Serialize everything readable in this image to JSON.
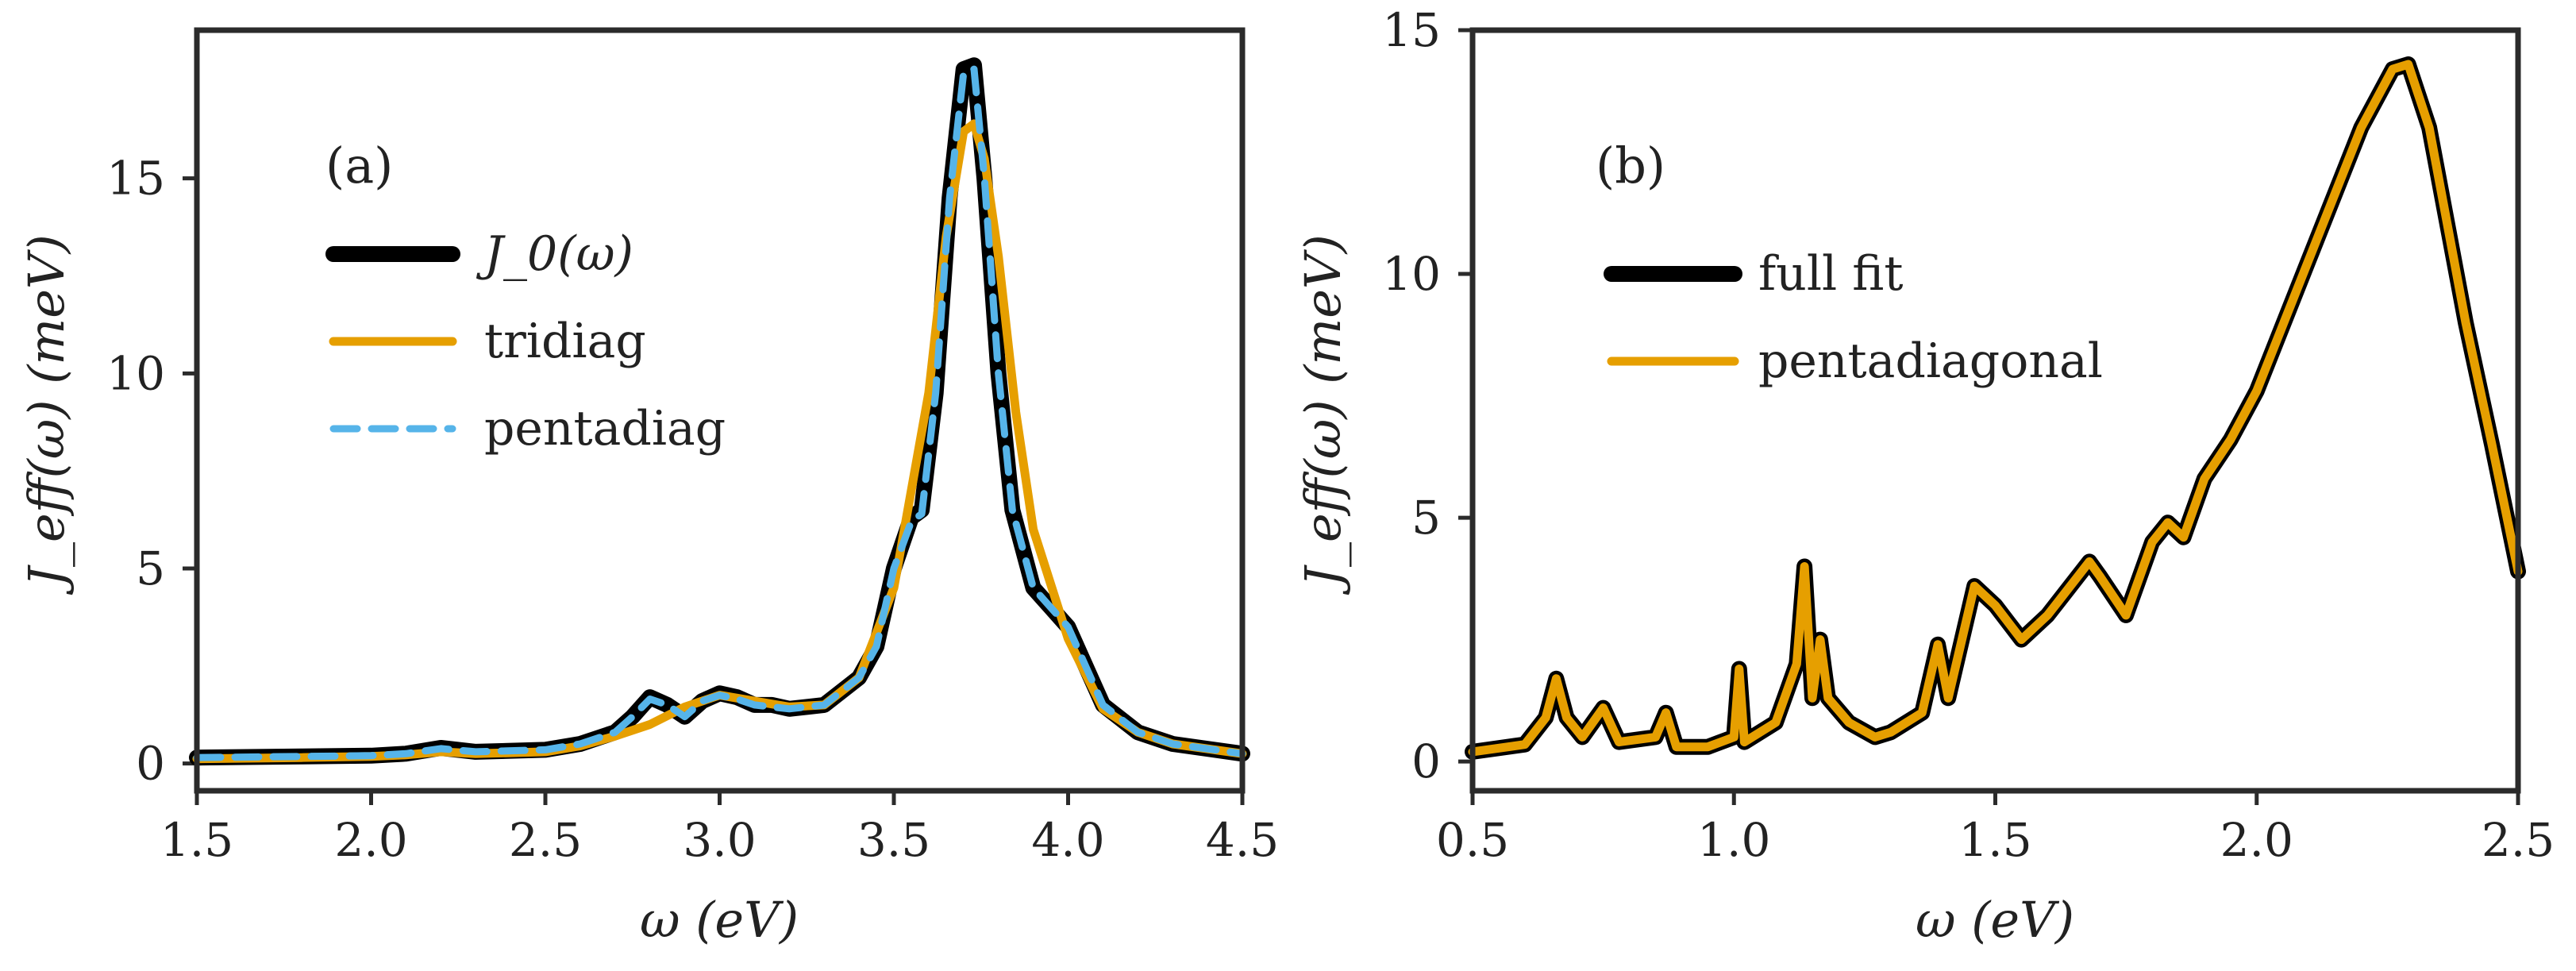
{
  "colors": {
    "black": "#000000",
    "orange": "#E69F00",
    "blue": "#56B4E9",
    "frame": "#2b2b2b"
  },
  "chart_data": [
    {
      "type": "line",
      "panel": "(a)",
      "xlabel": "ω (eV)",
      "ylabel": "J_eff(ω) (meV)",
      "xlim": [
        1.5,
        4.5
      ],
      "ylim": [
        -0.7,
        18.8
      ],
      "xticks": [
        "1.5",
        "2.0",
        "2.5",
        "3.0",
        "3.5",
        "4.0",
        "4.5"
      ],
      "yticks": [
        "0",
        "5",
        "10",
        "15"
      ],
      "legend_position": "upper-left",
      "series": [
        {
          "name": "J_0(ω)",
          "style": "solid-thick",
          "color": "#000000",
          "x": [
            1.5,
            1.8,
            2.0,
            2.1,
            2.2,
            2.3,
            2.5,
            2.6,
            2.7,
            2.75,
            2.8,
            2.85,
            2.9,
            2.95,
            3.0,
            3.05,
            3.1,
            3.15,
            3.2,
            3.3,
            3.4,
            3.45,
            3.5,
            3.55,
            3.58,
            3.62,
            3.66,
            3.7,
            3.73,
            3.76,
            3.8,
            3.84,
            3.9,
            3.95,
            4.0,
            4.1,
            4.2,
            4.3,
            4.5
          ],
          "y": [
            0.15,
            0.18,
            0.2,
            0.25,
            0.4,
            0.3,
            0.35,
            0.5,
            0.8,
            1.2,
            1.7,
            1.5,
            1.2,
            1.6,
            1.8,
            1.7,
            1.5,
            1.5,
            1.4,
            1.5,
            2.2,
            3.0,
            5.0,
            6.3,
            6.5,
            9.5,
            14.5,
            17.8,
            17.9,
            15.0,
            10.0,
            6.5,
            4.5,
            4.0,
            3.5,
            1.5,
            0.8,
            0.5,
            0.25
          ]
        },
        {
          "name": "tridiag",
          "style": "solid",
          "color": "#E69F00",
          "x": [
            1.5,
            1.8,
            2.0,
            2.1,
            2.2,
            2.3,
            2.5,
            2.6,
            2.7,
            2.8,
            2.9,
            3.0,
            3.1,
            3.2,
            3.3,
            3.4,
            3.5,
            3.6,
            3.65,
            3.7,
            3.73,
            3.76,
            3.8,
            3.85,
            3.9,
            4.0,
            4.1,
            4.2,
            4.3,
            4.5
          ],
          "y": [
            0.12,
            0.15,
            0.18,
            0.22,
            0.3,
            0.25,
            0.3,
            0.45,
            0.7,
            1.0,
            1.45,
            1.75,
            1.6,
            1.45,
            1.5,
            2.2,
            4.5,
            9.5,
            13.5,
            16.2,
            16.4,
            15.5,
            13.0,
            9.0,
            6.0,
            3.2,
            1.4,
            0.8,
            0.5,
            0.25
          ]
        },
        {
          "name": "pentadiag",
          "style": "dashed",
          "color": "#56B4E9",
          "x": [
            1.5,
            1.8,
            2.0,
            2.1,
            2.2,
            2.3,
            2.5,
            2.6,
            2.7,
            2.75,
            2.8,
            2.85,
            2.9,
            2.95,
            3.0,
            3.05,
            3.1,
            3.15,
            3.2,
            3.3,
            3.4,
            3.45,
            3.5,
            3.55,
            3.58,
            3.62,
            3.66,
            3.7,
            3.73,
            3.76,
            3.8,
            3.84,
            3.9,
            3.95,
            4.0,
            4.1,
            4.2,
            4.3,
            4.5
          ],
          "y": [
            0.15,
            0.18,
            0.2,
            0.25,
            0.38,
            0.3,
            0.35,
            0.5,
            0.8,
            1.2,
            1.65,
            1.5,
            1.2,
            1.6,
            1.75,
            1.65,
            1.5,
            1.45,
            1.4,
            1.5,
            2.2,
            3.0,
            5.0,
            6.2,
            6.4,
            9.5,
            14.5,
            17.7,
            17.8,
            15.0,
            10.0,
            6.5,
            4.5,
            4.0,
            3.5,
            1.5,
            0.8,
            0.5,
            0.25
          ]
        }
      ]
    },
    {
      "type": "line",
      "panel": "(b)",
      "xlabel": "ω (eV)",
      "ylabel": "J_eff(ω) (meV)",
      "xlim": [
        0.5,
        2.5
      ],
      "ylim": [
        -0.6,
        15.0
      ],
      "xticks": [
        "0.5",
        "1.0",
        "1.5",
        "2.0",
        "2.5"
      ],
      "yticks": [
        "0",
        "5",
        "10",
        "15"
      ],
      "legend_position": "upper-left",
      "series": [
        {
          "name": "full fit",
          "style": "solid-thick",
          "color": "#000000",
          "x": [
            0.5,
            0.6,
            0.64,
            0.66,
            0.68,
            0.71,
            0.75,
            0.78,
            0.85,
            0.87,
            0.89,
            0.95,
            1.0,
            1.01,
            1.02,
            1.08,
            1.12,
            1.135,
            1.15,
            1.165,
            1.18,
            1.22,
            1.27,
            1.3,
            1.36,
            1.39,
            1.41,
            1.46,
            1.5,
            1.55,
            1.6,
            1.68,
            1.7,
            1.75,
            1.8,
            1.83,
            1.86,
            1.9,
            1.95,
            2.0,
            2.1,
            2.2,
            2.26,
            2.29,
            2.33,
            2.4,
            2.45,
            2.5
          ],
          "y": [
            0.2,
            0.35,
            0.9,
            1.7,
            0.9,
            0.5,
            1.1,
            0.4,
            0.5,
            1.0,
            0.3,
            0.3,
            0.5,
            1.9,
            0.4,
            0.8,
            2.0,
            4.0,
            1.3,
            2.5,
            1.3,
            0.8,
            0.5,
            0.6,
            1.0,
            2.4,
            1.3,
            3.6,
            3.2,
            2.5,
            3.0,
            4.1,
            3.8,
            3.0,
            4.5,
            4.9,
            4.6,
            5.8,
            6.6,
            7.6,
            10.3,
            13.0,
            14.2,
            14.3,
            13.0,
            9.0,
            6.5,
            3.9
          ]
        },
        {
          "name": "pentadiagonal",
          "style": "solid",
          "color": "#E69F00",
          "x": [
            0.5,
            0.6,
            0.64,
            0.66,
            0.68,
            0.71,
            0.75,
            0.78,
            0.85,
            0.87,
            0.89,
            0.95,
            1.0,
            1.01,
            1.02,
            1.08,
            1.12,
            1.135,
            1.15,
            1.165,
            1.18,
            1.22,
            1.27,
            1.3,
            1.36,
            1.39,
            1.41,
            1.46,
            1.5,
            1.55,
            1.6,
            1.68,
            1.7,
            1.75,
            1.8,
            1.83,
            1.86,
            1.9,
            1.95,
            2.0,
            2.1,
            2.2,
            2.26,
            2.29,
            2.33,
            2.4,
            2.45,
            2.5
          ],
          "y": [
            0.2,
            0.35,
            0.9,
            1.7,
            0.9,
            0.5,
            1.1,
            0.4,
            0.5,
            1.0,
            0.3,
            0.3,
            0.5,
            1.9,
            0.4,
            0.8,
            2.0,
            4.0,
            1.3,
            2.5,
            1.3,
            0.8,
            0.5,
            0.6,
            1.0,
            2.4,
            1.3,
            3.6,
            3.2,
            2.5,
            3.0,
            4.1,
            3.8,
            3.0,
            4.5,
            4.9,
            4.6,
            5.8,
            6.6,
            7.6,
            10.3,
            13.0,
            14.2,
            14.3,
            13.0,
            9.0,
            6.5,
            3.9
          ]
        }
      ]
    }
  ]
}
